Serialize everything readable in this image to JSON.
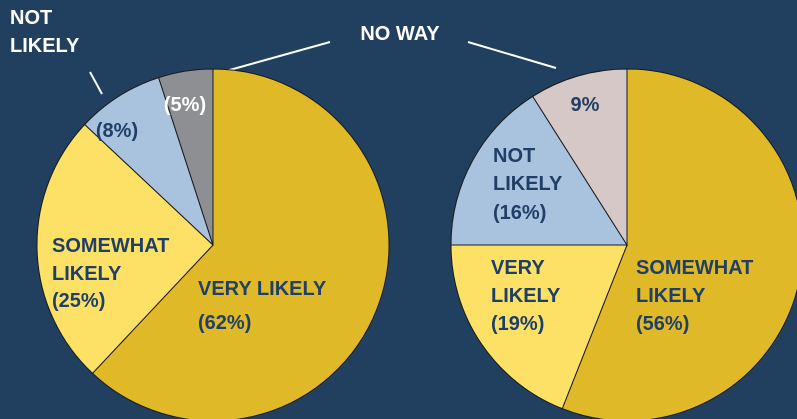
{
  "chart_data": [
    {
      "type": "pie",
      "categories": [
        "VERY LIKELY",
        "SOMEWHAT LIKELY",
        "NOT LIKELY",
        "NO WAY"
      ],
      "values": [
        62,
        25,
        8,
        5
      ],
      "value_labels": [
        "(62%)",
        "(25%)",
        "(8%)",
        "(5%)"
      ],
      "colors": [
        "#dfb928",
        "#fde166",
        "#a9c3df",
        "#8d8f93"
      ]
    },
    {
      "type": "pie",
      "categories": [
        "SOMEWHAT LIKELY",
        "VERY LIKELY",
        "NOT LIKELY",
        null
      ],
      "values": [
        56,
        19,
        16,
        9
      ],
      "value_labels": [
        "(56%)",
        "(19%)",
        "(16%)",
        "9%"
      ],
      "colors": [
        "#dfb928",
        "#fde166",
        "#a9c3df",
        "#d6c8c6"
      ]
    }
  ]
}
